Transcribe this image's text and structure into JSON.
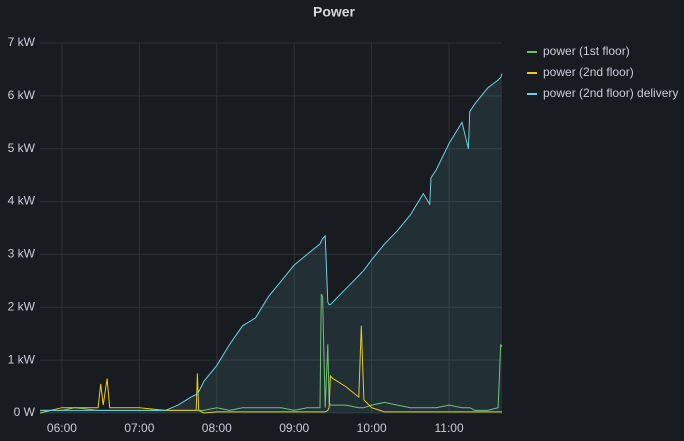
{
  "chart_data": {
    "type": "line",
    "title": "Power",
    "x": [
      "05:43",
      "06:00",
      "06:10",
      "06:28",
      "06:30",
      "06:32",
      "06:35",
      "06:37",
      "07:00",
      "07:20",
      "07:30",
      "07:40",
      "07:44",
      "07:45",
      "07:46",
      "07:50",
      "08:00",
      "08:10",
      "08:20",
      "08:30",
      "08:40",
      "08:50",
      "09:00",
      "09:10",
      "09:20",
      "09:21",
      "09:22",
      "09:24",
      "09:26",
      "09:27",
      "09:28",
      "09:30",
      "09:40",
      "09:50",
      "09:52",
      "09:54",
      "10:00",
      "10:10",
      "10:20",
      "10:30",
      "10:40",
      "10:45",
      "10:46",
      "10:50",
      "11:00",
      "11:10",
      "11:15",
      "11:16",
      "11:20",
      "11:30",
      "11:38",
      "11:40",
      "11:41"
    ],
    "series": [
      {
        "name": "power (1st floor)",
        "color": "#73bf69",
        "fill": false,
        "values": [
          0.05,
          0.05,
          0.1,
          0.05,
          0.05,
          0.05,
          0.05,
          0.05,
          0.05,
          0.05,
          0.05,
          0.05,
          0.05,
          0.05,
          0.05,
          0.05,
          0.1,
          0.05,
          0.1,
          0.1,
          0.1,
          0.1,
          0.05,
          0.1,
          0.1,
          2.25,
          2.2,
          0.1,
          1.3,
          0.2,
          0.15,
          0.15,
          0.15,
          0.1,
          0.1,
          0.1,
          0.15,
          0.2,
          0.15,
          0.1,
          0.1,
          0.1,
          0.1,
          0.1,
          0.15,
          0.1,
          0.1,
          0.1,
          0.05,
          0.05,
          0.1,
          1.3,
          1.25
        ]
      },
      {
        "name": "power (2nd floor)",
        "color": "#f2cc0c",
        "fill": false,
        "values": [
          0,
          0.1,
          0.1,
          0.1,
          0.55,
          0.15,
          0.65,
          0.1,
          0.1,
          0.05,
          0.05,
          0.05,
          0.05,
          0.75,
          0.05,
          0,
          0.02,
          0.02,
          0.02,
          0.02,
          0.02,
          0.02,
          0.02,
          0.02,
          0.02,
          0.02,
          0.02,
          0.02,
          0.05,
          0.1,
          0.7,
          0.65,
          0.5,
          0.3,
          1.65,
          0.25,
          0.1,
          0.02,
          0.02,
          0.02,
          0.02,
          0.02,
          0.02,
          0.02,
          0.02,
          0.02,
          0.02,
          0.02,
          0.02,
          0.02,
          0.02,
          0.02,
          0.02
        ]
      },
      {
        "name": "power (2nd floor) delivery",
        "color": "#6ed0e0",
        "fill": true,
        "values": [
          0.05,
          0.05,
          0.05,
          0.05,
          0.05,
          0.05,
          0.05,
          0.05,
          0.05,
          0.05,
          0.15,
          0.3,
          0.35,
          0.4,
          0.4,
          0.6,
          0.9,
          1.3,
          1.65,
          1.8,
          2.2,
          2.5,
          2.8,
          3.0,
          3.2,
          3.25,
          3.3,
          3.35,
          2.1,
          2.05,
          2.05,
          2.1,
          2.35,
          2.6,
          2.65,
          2.7,
          2.9,
          3.2,
          3.45,
          3.75,
          4.15,
          3.95,
          4.45,
          4.6,
          5.1,
          5.5,
          5.0,
          5.7,
          5.85,
          6.15,
          6.3,
          6.35,
          6.42
        ]
      }
    ],
    "xlim": [
      "05:43",
      "11:41"
    ],
    "xticks": [
      "06:00",
      "07:00",
      "08:00",
      "09:00",
      "10:00",
      "11:00"
    ],
    "ylim": [
      0,
      7
    ],
    "yticks": [
      {
        "value": 0,
        "label": "0 W"
      },
      {
        "value": 1,
        "label": "1 kW"
      },
      {
        "value": 2,
        "label": "2 kW"
      },
      {
        "value": 3,
        "label": "3 kW"
      },
      {
        "value": 4,
        "label": "4 kW"
      },
      {
        "value": 5,
        "label": "5 kW"
      },
      {
        "value": 6,
        "label": "6 kW"
      },
      {
        "value": 7,
        "label": "7 kW"
      }
    ],
    "grid": true,
    "legend": "right"
  }
}
